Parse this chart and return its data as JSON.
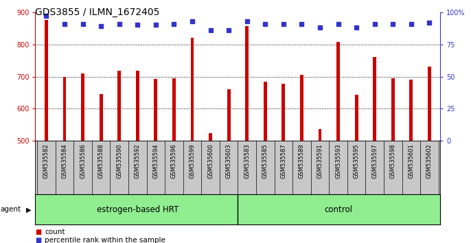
{
  "title": "GDS3855 / ILMN_1672405",
  "categories": [
    "GSM535582",
    "GSM535584",
    "GSM535586",
    "GSM535588",
    "GSM535590",
    "GSM535592",
    "GSM535594",
    "GSM535596",
    "GSM535599",
    "GSM535600",
    "GSM535603",
    "GSM535583",
    "GSM535585",
    "GSM535587",
    "GSM535589",
    "GSM535591",
    "GSM535593",
    "GSM535595",
    "GSM535597",
    "GSM535598",
    "GSM535601",
    "GSM535602"
  ],
  "bar_values": [
    875,
    700,
    710,
    645,
    718,
    718,
    693,
    695,
    820,
    525,
    660,
    857,
    683,
    678,
    706,
    537,
    808,
    643,
    760,
    695,
    690,
    730
  ],
  "percentile_values": [
    97,
    91,
    91,
    89,
    91,
    90,
    90,
    91,
    93,
    86,
    86,
    93,
    91,
    91,
    91,
    88,
    91,
    88,
    91,
    91,
    91,
    92
  ],
  "bar_color": "#cc0000",
  "percentile_color": "#3333cc",
  "group1_label": "estrogen-based HRT",
  "group1_count": 11,
  "group2_label": "control",
  "group2_count": 11,
  "group_label_prefix": "agent",
  "ylim_left": [
    500,
    900
  ],
  "ylim_right": [
    0,
    100
  ],
  "yticks_left": [
    500,
    600,
    700,
    800,
    900
  ],
  "yticks_right": [
    0,
    25,
    50,
    75,
    100
  ],
  "bg_color": "#ffffff",
  "tick_area_color": "#c8c8c8",
  "group_bg_color": "#90ee90",
  "title_fontsize": 10,
  "axis_fontsize": 7,
  "tick_fontsize": 6,
  "legend_fontsize": 7.5
}
